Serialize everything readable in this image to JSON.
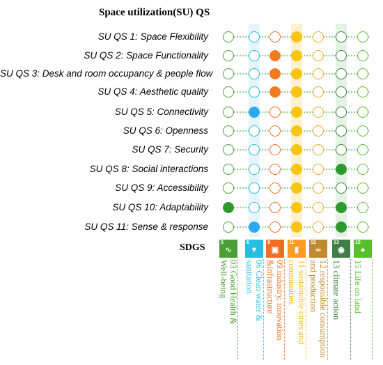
{
  "title": "Space utilization(SU) QS",
  "sdgs_label": "SDGS",
  "rows": [
    {
      "label": "SU QS 1: Space Flexibility"
    },
    {
      "label": "SU QS 2: Space Functionality"
    },
    {
      "label": "SU QS 3: Desk and room occupancy & people flow"
    },
    {
      "label": "SU QS 4: Aesthetic quality"
    },
    {
      "label": "SU QS 5: Connectivity"
    },
    {
      "label": "SU QS 6: Openness"
    },
    {
      "label": "SU QS 7: Security"
    },
    {
      "label": "SU QS 8: Social interactions"
    },
    {
      "label": "SU QS 9: Accessibility"
    },
    {
      "label": "SU QS 10: Adaptability"
    },
    {
      "label": "SU QS 11: Sense & response"
    }
  ],
  "columns": [
    {
      "label": "03 Good Health &\nWell-being",
      "color": "#4c9f38",
      "bg": "#ffffff",
      "icon_num": "3",
      "icon_name": "heartbeat-icon",
      "icon_color": "#4c9f38"
    },
    {
      "label": "06 Clean water &\nsanitation",
      "color": "#26bde2",
      "bg": "#e6f5fb",
      "icon_num": "6",
      "icon_name": "water-drop-icon",
      "icon_color": "#26bde2"
    },
    {
      "label": "09 industry, innovation\n&infrastructure",
      "color": "#f36d25",
      "bg": "#ffffff",
      "icon_num": "9",
      "icon_name": "cubes-icon",
      "icon_color": "#f36d25"
    },
    {
      "label": "11 sustainable cities and\ncommunities",
      "color": "#fdb713",
      "bg": "#fdf1cf",
      "icon_num": "11",
      "icon_name": "city-icon",
      "icon_color": "#fd9d24"
    },
    {
      "label": "12 responsible consumption\nand production",
      "color": "#bf8b2e",
      "bg": "#ffffff",
      "icon_num": "12",
      "icon_name": "infinity-icon",
      "icon_color": "#bf8b2e"
    },
    {
      "label": "13 climate action",
      "color": "#3f7e44",
      "bg": "#e4f2e4",
      "icon_num": "13",
      "icon_name": "eye-globe-icon",
      "icon_color": "#3f7e44"
    },
    {
      "label": "15 Life on land",
      "color": "#56c02b",
      "bg": "#ffffff",
      "icon_num": "15",
      "icon_name": "tree-icon",
      "icon_color": "#56c02b"
    }
  ],
  "outline_colors": [
    "#4c9f38",
    "#26bde2",
    "#f36d25",
    "#fdb713",
    "#f6a623",
    "#3f7e44",
    "#56c02b"
  ],
  "fill_colors": [
    "#2e9a2e",
    "#2fa8f2",
    "#f47a20",
    "#f9c413",
    "#f6a623",
    "#2e9a2e",
    "#56c02b"
  ],
  "matrix": [
    [
      0,
      0,
      0,
      1,
      0,
      0,
      0
    ],
    [
      0,
      0,
      1,
      1,
      0,
      0,
      0
    ],
    [
      0,
      0,
      1,
      1,
      0,
      0,
      0
    ],
    [
      0,
      0,
      1,
      1,
      0,
      0,
      0
    ],
    [
      0,
      1,
      0,
      1,
      0,
      0,
      0
    ],
    [
      0,
      0,
      0,
      1,
      0,
      0,
      0
    ],
    [
      0,
      0,
      0,
      1,
      0,
      0,
      0
    ],
    [
      0,
      0,
      0,
      1,
      0,
      1,
      0
    ],
    [
      0,
      0,
      0,
      1,
      0,
      0,
      0
    ],
    [
      1,
      0,
      0,
      1,
      0,
      1,
      0
    ],
    [
      0,
      1,
      0,
      1,
      0,
      1,
      0
    ]
  ]
}
